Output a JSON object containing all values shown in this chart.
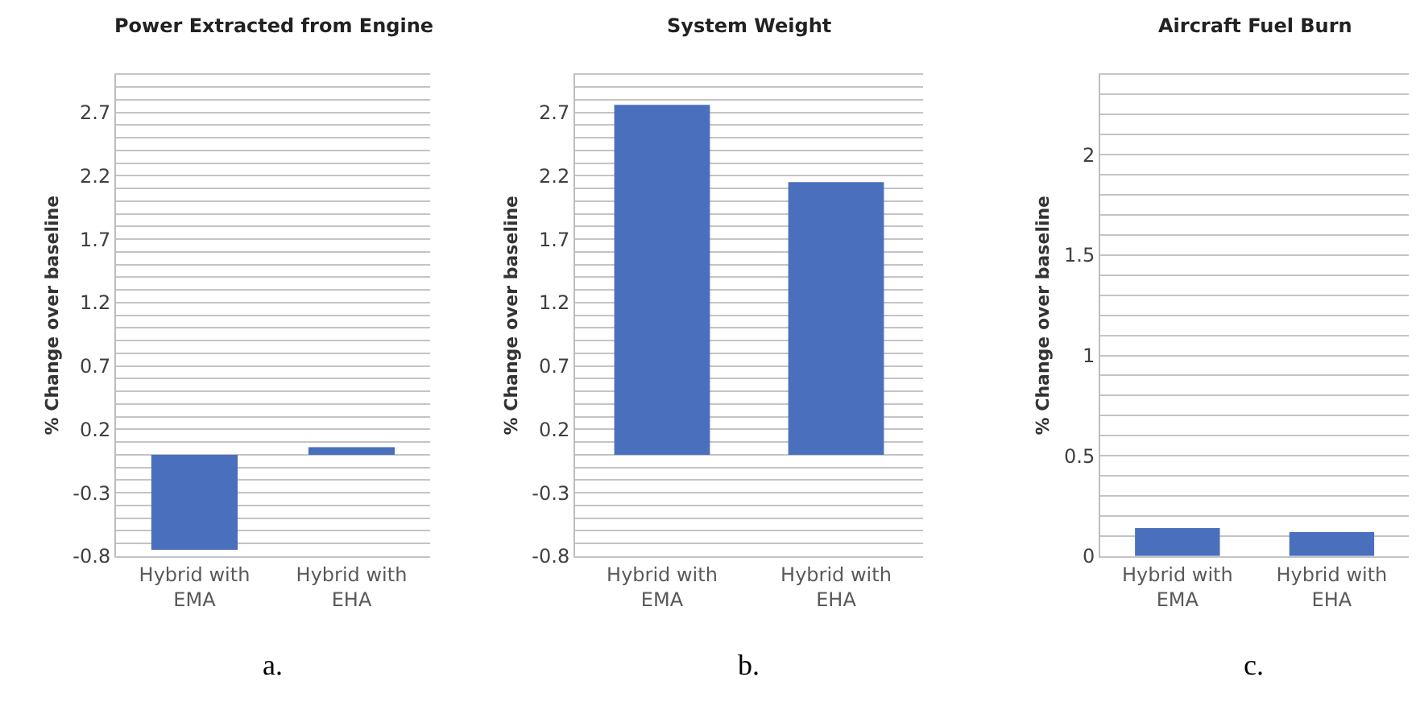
{
  "chart_data": [
    {
      "type": "bar",
      "title": "Power Extracted from Engine",
      "ylabel": "% Change over baseline",
      "categories": [
        "Hybrid with EMA",
        "Hybrid with EHA"
      ],
      "values": [
        -0.75,
        0.06
      ],
      "color": "#4a6fbd",
      "ylim": [
        -0.8,
        3.0
      ],
      "yticks": [
        -0.8,
        {
          "value": -0.7,
          "label": null
        },
        {
          "value": -0.6,
          "label": null
        },
        {
          "value": -0.5,
          "label": null
        },
        {
          "value": -0.4,
          "label": null
        },
        -0.3,
        {
          "value": -0.2,
          "label": null
        },
        {
          "value": -0.1,
          "label": null
        },
        {
          "value": 0,
          "label": null
        },
        {
          "value": 0.1,
          "label": null
        },
        0.2,
        {
          "value": 0.3,
          "label": null
        },
        {
          "value": 0.4,
          "label": null
        },
        {
          "value": 0.5,
          "label": null
        },
        {
          "value": 0.6,
          "label": null
        },
        0.7,
        {
          "value": 0.8,
          "label": null
        },
        {
          "value": 0.9,
          "label": null
        },
        {
          "value": 1.0,
          "label": null
        },
        {
          "value": 1.1,
          "label": null
        },
        1.2,
        {
          "value": 1.3,
          "label": null
        },
        {
          "value": 1.4,
          "label": null
        },
        {
          "value": 1.5,
          "label": null
        },
        {
          "value": 1.6,
          "label": null
        },
        1.7,
        {
          "value": 1.8,
          "label": null
        },
        {
          "value": 1.9,
          "label": null
        },
        {
          "value": 2.0,
          "label": null
        },
        {
          "value": 2.1,
          "label": null
        },
        2.2,
        {
          "value": 2.3,
          "label": null
        },
        {
          "value": 2.4,
          "label": null
        },
        {
          "value": 2.5,
          "label": null
        },
        {
          "value": 2.6,
          "label": null
        },
        2.7,
        {
          "value": 2.8,
          "label": null
        },
        {
          "value": 2.9,
          "label": null
        },
        {
          "value": 3.0,
          "label": null
        }
      ],
      "grid": "y",
      "annotations": [
        "a."
      ]
    },
    {
      "type": "bar",
      "title": "System Weight",
      "ylabel": "% Change over baseline",
      "categories": [
        "Hybrid with EMA",
        "Hybrid with EHA"
      ],
      "values": [
        2.76,
        2.15
      ],
      "color": "#4a6fbd",
      "ylim": [
        -0.8,
        3.0
      ],
      "yticks": [
        -0.8,
        {
          "value": -0.7,
          "label": null
        },
        {
          "value": -0.6,
          "label": null
        },
        {
          "value": -0.5,
          "label": null
        },
        {
          "value": -0.4,
          "label": null
        },
        -0.3,
        {
          "value": -0.2,
          "label": null
        },
        {
          "value": -0.1,
          "label": null
        },
        {
          "value": 0,
          "label": null
        },
        {
          "value": 0.1,
          "label": null
        },
        0.2,
        {
          "value": 0.3,
          "label": null
        },
        {
          "value": 0.4,
          "label": null
        },
        {
          "value": 0.5,
          "label": null
        },
        {
          "value": 0.6,
          "label": null
        },
        0.7,
        {
          "value": 0.8,
          "label": null
        },
        {
          "value": 0.9,
          "label": null
        },
        {
          "value": 1.0,
          "label": null
        },
        {
          "value": 1.1,
          "label": null
        },
        1.2,
        {
          "value": 1.3,
          "label": null
        },
        {
          "value": 1.4,
          "label": null
        },
        {
          "value": 1.5,
          "label": null
        },
        {
          "value": 1.6,
          "label": null
        },
        1.7,
        {
          "value": 1.8,
          "label": null
        },
        {
          "value": 1.9,
          "label": null
        },
        {
          "value": 2.0,
          "label": null
        },
        {
          "value": 2.1,
          "label": null
        },
        2.2,
        {
          "value": 2.3,
          "label": null
        },
        {
          "value": 2.4,
          "label": null
        },
        {
          "value": 2.5,
          "label": null
        },
        {
          "value": 2.6,
          "label": null
        },
        2.7,
        {
          "value": 2.8,
          "label": null
        },
        {
          "value": 2.9,
          "label": null
        },
        {
          "value": 3.0,
          "label": null
        }
      ],
      "grid": "y",
      "annotations": [
        "b."
      ]
    },
    {
      "type": "bar",
      "title": "Aircraft Fuel Burn",
      "ylabel": "% Change over baseline",
      "categories": [
        "Hybrid with EMA",
        "Hybrid with EHA"
      ],
      "values": [
        0.14,
        0.12
      ],
      "color": "#4a6fbd",
      "ylim": [
        0,
        2.4
      ],
      "yticks": [
        0,
        {
          "value": 0.1,
          "label": null
        },
        {
          "value": 0.2,
          "label": null
        },
        {
          "value": 0.3,
          "label": null
        },
        {
          "value": 0.4,
          "label": null
        },
        0.5,
        {
          "value": 0.6,
          "label": null
        },
        {
          "value": 0.7,
          "label": null
        },
        {
          "value": 0.8,
          "label": null
        },
        {
          "value": 0.9,
          "label": null
        },
        1,
        {
          "value": 1.1,
          "label": null
        },
        {
          "value": 1.2,
          "label": null
        },
        {
          "value": 1.3,
          "label": null
        },
        {
          "value": 1.4,
          "label": null
        },
        1.5,
        {
          "value": 1.6,
          "label": null
        },
        {
          "value": 1.7,
          "label": null
        },
        {
          "value": 1.8,
          "label": null
        },
        {
          "value": 1.9,
          "label": null
        },
        2,
        {
          "value": 2.1,
          "label": null
        },
        {
          "value": 2.2,
          "label": null
        },
        {
          "value": 2.3,
          "label": null
        },
        {
          "value": 2.4,
          "label": null
        }
      ],
      "grid": "y",
      "annotations": [
        "c."
      ]
    }
  ]
}
